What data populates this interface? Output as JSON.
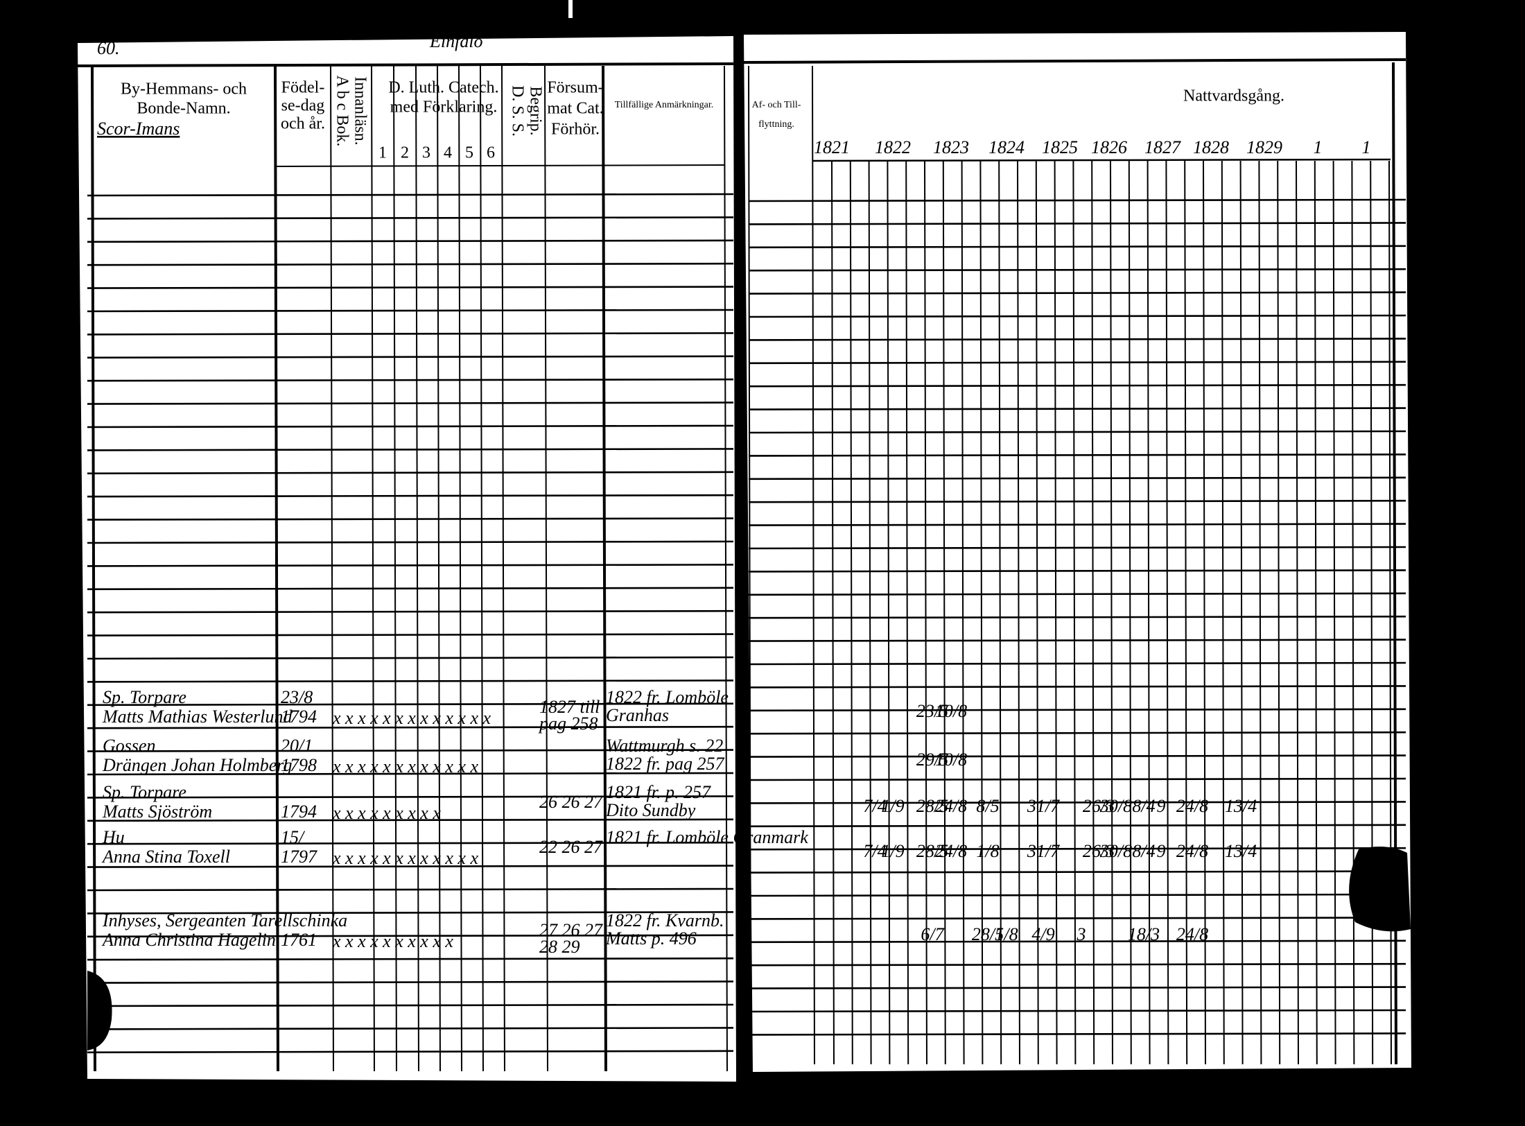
{
  "page_number": "60.",
  "parish_header": "Einfalo",
  "headers": {
    "name_col": [
      "By-Hemmans- och",
      "Bonde-Namn."
    ],
    "village": "Scor-Imans",
    "birth_col": [
      "Födel-",
      "se-dag",
      "och år."
    ],
    "abc_col": [
      "A b c Bok.",
      "Innanläsn."
    ],
    "catech_col": [
      "D. Luth. Catech.",
      "med Förklaring."
    ],
    "catech_parts": [
      "1",
      "2",
      "3",
      "4",
      "5",
      "6"
    ],
    "dss_col": [
      "D. S. S.",
      "Begrip."
    ],
    "missed_col": [
      "Försum-",
      "mat Cat.",
      "Förhör."
    ],
    "notes_col": "Tillfällige Anmärkningar.",
    "moves_col": [
      "Af- och Till-",
      "flyttning."
    ],
    "communion_col": "Nattvardsgång."
  },
  "years": [
    "1821",
    "1822",
    "1823",
    "1824",
    "1825",
    "1826",
    "1827",
    "1828",
    "1829",
    "1",
    "1"
  ],
  "rows": [
    {
      "title": "Sp. Torpare",
      "name": "Matts Mathias Westerlund",
      "born": [
        "23/8",
        "1794"
      ],
      "marks": "x x x x x x x x x x x x x",
      "missed": [
        "1827 till",
        "pag 258"
      ],
      "notes": [
        "1822 fr. Lomböle",
        "Granhas"
      ],
      "communion": [
        "23/5",
        "10/8"
      ]
    },
    {
      "title": "Gossen",
      "name": "Drängen Johan Holmberg",
      "born": [
        "20/1",
        "1798"
      ],
      "marks": "x x x x x x x x x x x x",
      "missed": [],
      "notes": [
        "Wattmurgh s. 22",
        "1822 fr. pag 257"
      ],
      "communion": [
        "29/5",
        "10/8"
      ]
    },
    {
      "title": "Sp. Torpare",
      "name": "Matts Sjöström",
      "born": [
        "",
        "1794"
      ],
      "marks": "x x x x x x x x x",
      "missed": [
        "26 26 27"
      ],
      "notes": [
        "1821 fr. p. 257",
        "Dito Sundby"
      ],
      "communion": [
        "7/4",
        "1/9",
        "28/5",
        "24/8",
        "8/5",
        "31/7",
        "26/3",
        "30/8",
        "8/4",
        "9",
        "24/8",
        "13/4"
      ]
    },
    {
      "title": "Hu",
      "name": "Anna Stina Toxell",
      "born": [
        "15/",
        "1797"
      ],
      "marks": "x x x x x x x x x x x x",
      "missed": [
        "22 26 27"
      ],
      "notes": [
        "1821 fr. Lomböle Granmark"
      ],
      "communion": [
        "7/4",
        "1/9",
        "28/5",
        "24/8",
        "1/8",
        "31/7",
        "26/3",
        "30/8",
        "8/4",
        "9",
        "24/8",
        "13/4"
      ]
    },
    {
      "title": "Inhyses, Sergeanten Tarellschinka",
      "name": "Anna Christina Hagelin",
      "born": [
        "",
        "1761"
      ],
      "marks": "x x x x x x x x x x",
      "missed": [
        "27 26 27",
        "28 29"
      ],
      "notes": [
        "1822 fr. Kvarnb.",
        "Matts p. 496"
      ],
      "communion": [
        "6/7",
        "28/5",
        "1/8",
        "4/9",
        "3",
        "18/3",
        "24/8"
      ]
    }
  ]
}
